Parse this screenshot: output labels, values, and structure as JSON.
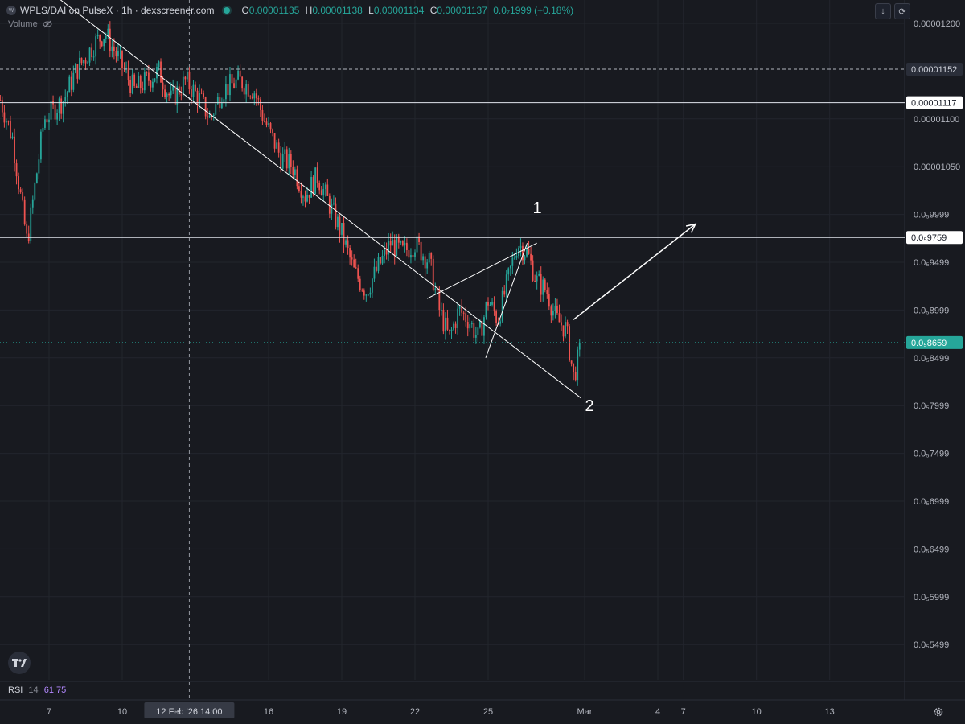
{
  "header": {
    "logo_text": "W",
    "title": "WPLS/DAI on PulseX · 1h · dexscreener.com",
    "ohlc": [
      {
        "k": "O",
        "v": "0.00001135"
      },
      {
        "k": "H",
        "v": "0.00001138"
      },
      {
        "k": "L",
        "v": "0.00001134"
      },
      {
        "k": "C",
        "v": "0.00001137"
      },
      {
        "k": "",
        "v": "0.0₇1999 (+0.18%)"
      }
    ]
  },
  "toolbar": {
    "down_icon": "arrow-down-icon",
    "refresh_icon": "refresh-icon"
  },
  "volume_label": "Volume",
  "rsi": {
    "name": "RSI",
    "length": "14",
    "value": "61.75"
  },
  "annotations": {
    "label1": "1",
    "label2": "2"
  },
  "chart_data": {
    "type": "candlestick",
    "price_scale": {
      "min": 5.25e-06,
      "max": 1.225e-05,
      "ticks": [
        {
          "value": 1.2e-05,
          "label": "0.00001200"
        },
        {
          "value": 1.1e-05,
          "label": "0.00001100"
        },
        {
          "value": 1.05e-05,
          "label": "0.00001050"
        },
        {
          "value": 9.9999e-06,
          "label": "0.0₅9999"
        },
        {
          "value": 9.4999e-06,
          "label": "0.0₅9499"
        },
        {
          "value": 8.9999e-06,
          "label": "0.0₅8999"
        },
        {
          "value": 8.4999e-06,
          "label": "0.0₅8499"
        },
        {
          "value": 7.9999e-06,
          "label": "0.0₅7999"
        },
        {
          "value": 7.4999e-06,
          "label": "0.0₅7499"
        },
        {
          "value": 6.9999e-06,
          "label": "0.0₅6999"
        },
        {
          "value": 6.4999e-06,
          "label": "0.0₅6499"
        },
        {
          "value": 5.9999e-06,
          "label": "0.0₅5999"
        },
        {
          "value": 5.4999e-06,
          "label": "0.0₅5499"
        }
      ]
    },
    "time_scale": {
      "start_day": 5.0,
      "end_day": 14.9,
      "ticks": [
        {
          "day": 7,
          "label": "7"
        },
        {
          "day": 10,
          "label": "10"
        },
        {
          "day": 16,
          "label": "16"
        },
        {
          "day": 19,
          "label": "19"
        },
        {
          "day": 22,
          "label": "22"
        },
        {
          "day": 25,
          "label": "25"
        },
        {
          "day": 29,
          "label": "Mar"
        },
        {
          "day": 30,
          "label": "4"
        },
        {
          "day": 33,
          "label": "7"
        },
        {
          "day": 36,
          "label": "10"
        },
        {
          "day": 39,
          "label": "13"
        }
      ],
      "crosshair": {
        "day": 12.75,
        "label": "12 Feb '26   14:00"
      }
    },
    "horizontal_levels": [
      {
        "value": 1.152e-05,
        "label": "0.00001152",
        "style": "dashed"
      },
      {
        "value": 1.117e-05,
        "label": "0.00001117",
        "style": "solid"
      },
      {
        "value": 9.759e-06,
        "label": "0.0₅9759",
        "style": "solid"
      }
    ],
    "last_price": {
      "value": 8.659e-06,
      "label": "0.0₅8659",
      "color": "#26a69a"
    },
    "trend_lines": [
      {
        "from": [
          5.5,
          1.263e-05
        ],
        "to": [
          28.8,
          8.08e-06
        ]
      },
      {
        "from": [
          22.5,
          9.12e-06
        ],
        "to": [
          27.0,
          9.7e-06
        ]
      },
      {
        "from": [
          24.9,
          8.5e-06
        ],
        "to": [
          26.6,
          9.7e-06
        ]
      }
    ],
    "arrow": {
      "from": [
        28.5,
        8.9e-06
      ],
      "to": [
        33.5,
        9.9e-06
      ]
    },
    "anchors": [
      {
        "day": 5,
        "price": 1.12e-05
      },
      {
        "day": 5.5,
        "price": 1.08e-05
      },
      {
        "day": 6.1,
        "price": 9.7e-06
      },
      {
        "day": 6.8,
        "price": 1.1e-05
      },
      {
        "day": 7.6,
        "price": 1.12e-05
      },
      {
        "day": 8.1,
        "price": 1.15e-05
      },
      {
        "day": 8.9,
        "price": 1.18e-05
      },
      {
        "day": 9.3,
        "price": 1.19e-05
      },
      {
        "day": 10.1,
        "price": 1.15e-05
      },
      {
        "day": 10.5,
        "price": 1.13e-05
      },
      {
        "day": 11.0,
        "price": 1.14e-05
      },
      {
        "day": 11.5,
        "price": 1.15e-05
      },
      {
        "day": 12.0,
        "price": 1.12e-05
      },
      {
        "day": 12.6,
        "price": 1.14e-05
      },
      {
        "day": 13.2,
        "price": 1.12e-05
      },
      {
        "day": 13.6,
        "price": 1.1e-05
      },
      {
        "day": 14.1,
        "price": 1.13e-05
      },
      {
        "day": 14.8,
        "price": 1.14e-05
      },
      {
        "day": 15.4,
        "price": 1.13e-05
      },
      {
        "day": 15.8,
        "price": 1.1e-05
      },
      {
        "day": 16.5,
        "price": 1.06e-05
      },
      {
        "day": 17.0,
        "price": 1.05e-05
      },
      {
        "day": 17.5,
        "price": 1.02e-05
      },
      {
        "day": 18.0,
        "price": 1.04e-05
      },
      {
        "day": 18.5,
        "price": 1.01e-05
      },
      {
        "day": 19.0,
        "price": 9.8e-06
      },
      {
        "day": 19.5,
        "price": 9.4e-06
      },
      {
        "day": 20.0,
        "price": 9.2e-06
      },
      {
        "day": 20.6,
        "price": 9.5e-06
      },
      {
        "day": 21.0,
        "price": 9.7e-06
      },
      {
        "day": 21.5,
        "price": 9.6e-06
      },
      {
        "day": 22.0,
        "price": 9.7e-06
      },
      {
        "day": 22.6,
        "price": 9.5e-06
      },
      {
        "day": 23.0,
        "price": 9e-06
      },
      {
        "day": 23.4,
        "price": 8.7e-06
      },
      {
        "day": 23.8,
        "price": 9e-06
      },
      {
        "day": 24.2,
        "price": 8.9e-06
      },
      {
        "day": 24.6,
        "price": 8.7e-06
      },
      {
        "day": 25.0,
        "price": 9.1e-06
      },
      {
        "day": 25.4,
        "price": 8.9e-06
      },
      {
        "day": 25.8,
        "price": 9.3e-06
      },
      {
        "day": 26.2,
        "price": 9.7e-06
      },
      {
        "day": 26.6,
        "price": 9.6e-06
      },
      {
        "day": 27.0,
        "price": 9.3e-06
      },
      {
        "day": 27.4,
        "price": 9.2e-06
      },
      {
        "day": 27.8,
        "price": 8.9e-06
      },
      {
        "day": 28.2,
        "price": 8.8e-06
      },
      {
        "day": 28.5,
        "price": 8.3e-06
      },
      {
        "day": 28.8,
        "price": 8.6e-06
      }
    ]
  },
  "colors": {
    "up": "#26a69a",
    "down": "#ef5350",
    "background": "#181a20",
    "grid": "#22252d",
    "line": "#ffffff"
  }
}
